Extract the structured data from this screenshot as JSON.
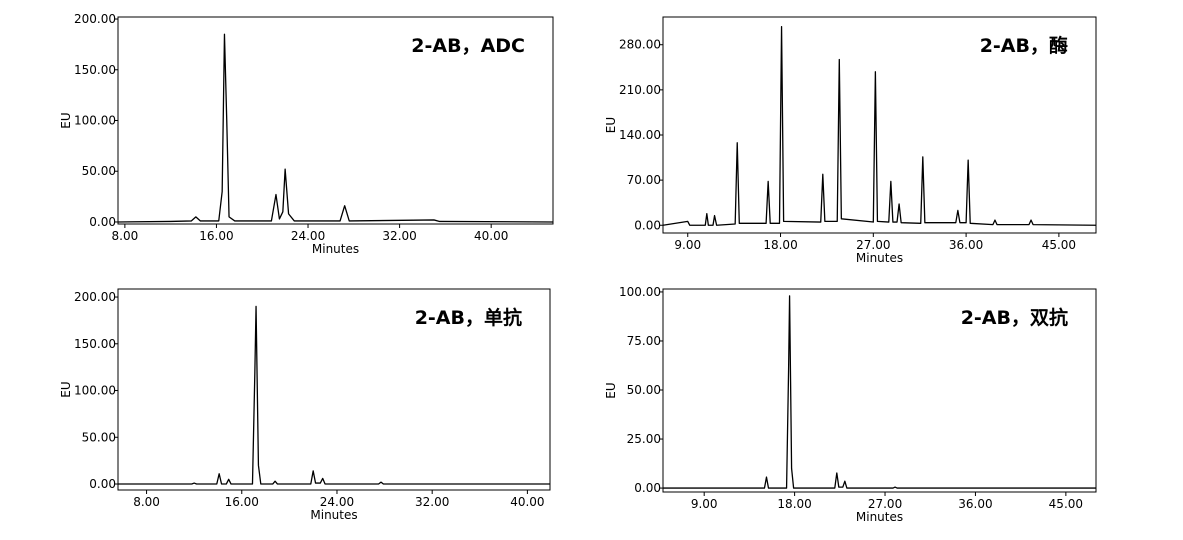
{
  "chart_data": [
    {
      "type": "line",
      "annotation": "2-AB，ADC",
      "xlabel": "Minutes",
      "ylabel": "EU",
      "color": "#000000",
      "x": [
        7.4,
        12,
        13.8,
        14.2,
        14.6,
        16.2,
        16.5,
        16.7,
        16.9,
        17.1,
        17.6,
        20.8,
        21.2,
        21.5,
        21.8,
        22.0,
        22.3,
        22.8,
        26.8,
        27.2,
        27.6,
        35,
        35.5,
        45.4
      ],
      "values": [
        0,
        0.5,
        1,
        5,
        1,
        1,
        30,
        185,
        100,
        5,
        1,
        1,
        27,
        3,
        10,
        52,
        8,
        1,
        1,
        16,
        1,
        2,
        0.5,
        0
      ],
      "xlim": [
        7.4,
        45.4
      ],
      "ylim": [
        -2,
        202
      ],
      "xticks": [
        {
          "value": 8,
          "label": "8.00"
        },
        {
          "value": 16,
          "label": "16.00"
        },
        {
          "value": 24,
          "label": "24.00"
        },
        {
          "value": 32,
          "label": "32.00"
        },
        {
          "value": 40,
          "label": "40.00"
        }
      ],
      "yticks": [
        {
          "value": 0,
          "label": "0.00"
        },
        {
          "value": 50,
          "label": "50.00"
        },
        {
          "value": 100,
          "label": "100.00"
        },
        {
          "value": 150,
          "label": "150.00"
        },
        {
          "value": 200,
          "label": "200.00"
        }
      ]
    },
    {
      "type": "line",
      "annotation": "2-AB，酶",
      "xlabel": "Minutes",
      "ylabel": "EU",
      "color": "#000000",
      "x": [
        6.6,
        9.0,
        9.2,
        10.7,
        10.85,
        11.0,
        11.45,
        11.6,
        11.8,
        13.6,
        13.8,
        14.0,
        16.6,
        16.8,
        17.0,
        17.9,
        18.1,
        18.3,
        21.9,
        22.1,
        22.3,
        23.5,
        23.7,
        23.9,
        27.0,
        27.2,
        27.4,
        28.5,
        28.7,
        28.9,
        29.3,
        29.5,
        29.7,
        31.6,
        31.8,
        32.0,
        35.0,
        35.2,
        35.4,
        36.0,
        36.2,
        36.4,
        38.6,
        38.8,
        39.0,
        42.1,
        42.3,
        42.5,
        48.6
      ],
      "values": [
        0,
        6,
        0,
        0,
        18,
        0,
        0,
        15,
        0,
        2,
        128,
        3,
        3,
        68,
        3,
        3,
        308,
        6,
        5,
        79,
        6,
        6,
        257,
        10,
        5,
        238,
        6,
        5,
        68,
        5,
        5,
        33,
        4,
        3,
        106,
        4,
        4,
        23,
        4,
        4,
        101,
        3,
        1,
        8,
        1,
        1,
        8,
        1,
        0
      ],
      "xlim": [
        6.6,
        48.6
      ],
      "ylim": [
        -12,
        323
      ],
      "xticks": [
        {
          "value": 9,
          "label": "9.00"
        },
        {
          "value": 18,
          "label": "18.00"
        },
        {
          "value": 27,
          "label": "27.00"
        },
        {
          "value": 36,
          "label": "36.00"
        },
        {
          "value": 45,
          "label": "45.00"
        }
      ],
      "yticks": [
        {
          "value": 0,
          "label": "0.00"
        },
        {
          "value": 70,
          "label": "70.00"
        },
        {
          "value": 140,
          "label": "140.00"
        },
        {
          "value": 210,
          "label": "210.00"
        },
        {
          "value": 280,
          "label": "280.00"
        }
      ]
    },
    {
      "type": "line",
      "annotation": "2-AB，单抗",
      "xlabel": "Minutes",
      "ylabel": "EU",
      "color": "#000000",
      "x": [
        5.6,
        11.8,
        12.0,
        12.2,
        13.9,
        14.1,
        14.3,
        14.7,
        14.9,
        15.1,
        16.9,
        17.1,
        17.2,
        17.4,
        17.6,
        18.6,
        18.8,
        19.0,
        21.8,
        22.0,
        22.2,
        22.6,
        22.8,
        23.0,
        27.5,
        27.7,
        27.9,
        41.9
      ],
      "values": [
        0,
        0,
        1,
        0,
        0,
        11,
        0,
        0,
        5,
        0,
        0,
        120,
        190,
        20,
        0,
        0,
        3,
        0,
        0,
        14,
        1,
        1,
        6,
        0,
        0,
        2,
        0,
        0
      ],
      "xlim": [
        5.6,
        41.9
      ],
      "ylim": [
        -6.4,
        208.6
      ],
      "xticks": [
        {
          "value": 8,
          "label": "8.00"
        },
        {
          "value": 16,
          "label": "16.00"
        },
        {
          "value": 24,
          "label": "24.00"
        },
        {
          "value": 32,
          "label": "32.00"
        },
        {
          "value": 40,
          "label": "40.00"
        }
      ],
      "yticks": [
        {
          "value": 0,
          "label": "0.00"
        },
        {
          "value": 50,
          "label": "50.00"
        },
        {
          "value": 100,
          "label": "100.00"
        },
        {
          "value": 150,
          "label": "150.00"
        },
        {
          "value": 200,
          "label": "200.00"
        }
      ]
    },
    {
      "type": "line",
      "annotation": "2-AB，双抗",
      "xlabel": "Minutes",
      "ylabel": "EU",
      "color": "#000000",
      "x": [
        4.9,
        15.0,
        15.2,
        15.4,
        17.2,
        17.4,
        17.5,
        17.7,
        17.9,
        22.0,
        22.2,
        22.4,
        22.8,
        23.0,
        23.2,
        27.8,
        28.0,
        28.2,
        48.0
      ],
      "values": [
        0,
        0,
        5.6,
        0,
        0,
        60,
        98,
        10,
        0,
        0,
        7.7,
        0.5,
        0.5,
        3.5,
        0,
        0,
        0.5,
        0,
        0
      ],
      "xlim": [
        4.9,
        48.0
      ],
      "ylim": [
        -2,
        101.5
      ],
      "xticks": [
        {
          "value": 9,
          "label": "9.00"
        },
        {
          "value": 18,
          "label": "18.00"
        },
        {
          "value": 27,
          "label": "27.00"
        },
        {
          "value": 36,
          "label": "36.00"
        },
        {
          "value": 45,
          "label": "45.00"
        }
      ],
      "yticks": [
        {
          "value": 0,
          "label": "0.00"
        },
        {
          "value": 25,
          "label": "25.00"
        },
        {
          "value": 50,
          "label": "50.00"
        },
        {
          "value": 75,
          "label": "75.00"
        },
        {
          "value": 100,
          "label": "100.00"
        }
      ]
    }
  ]
}
